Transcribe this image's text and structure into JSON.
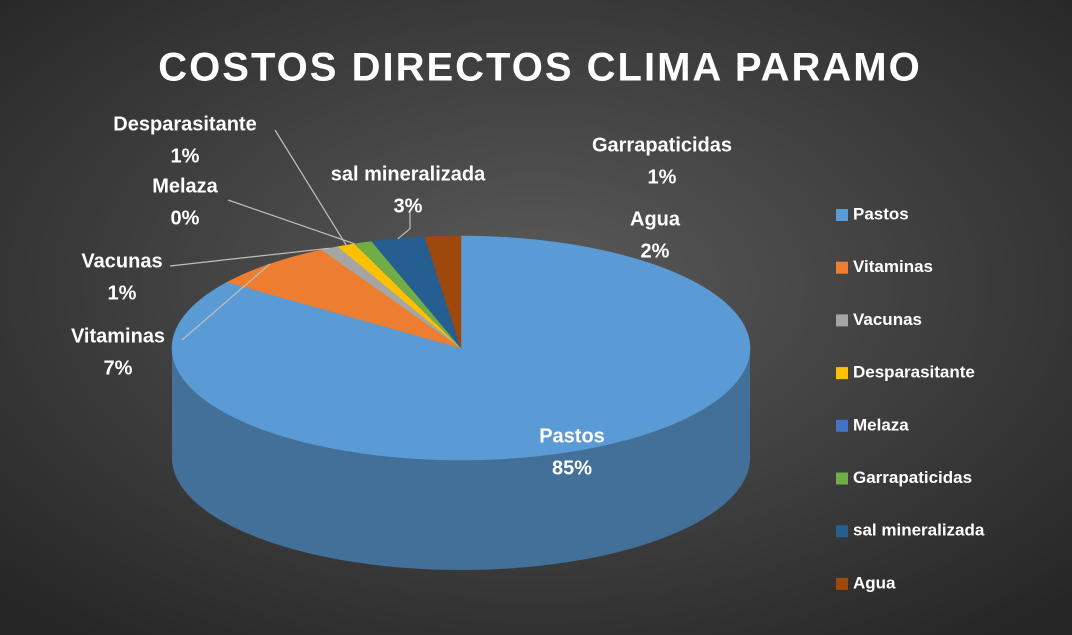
{
  "chart_data": {
    "type": "pie3d",
    "title": "COSTOS DIRECTOS CLIMA PARAMO",
    "categories": [
      "Pastos",
      "Vitaminas",
      "Vacunas",
      "Desparasitante",
      "Melaza",
      "Garrapaticidas",
      "sal mineralizada",
      "Agua"
    ],
    "values": [
      85,
      7,
      1,
      1,
      0,
      1,
      3,
      2
    ],
    "value_labels": [
      "85%",
      "7%",
      "1%",
      "1%",
      "0%",
      "1%",
      "3%",
      "2%"
    ],
    "colors": [
      "#5b9bd5",
      "#ed7d31",
      "#a5a5a5",
      "#ffc000",
      "#4472c4",
      "#70ad47",
      "#255e91",
      "#9e480e"
    ],
    "legend": "right"
  }
}
